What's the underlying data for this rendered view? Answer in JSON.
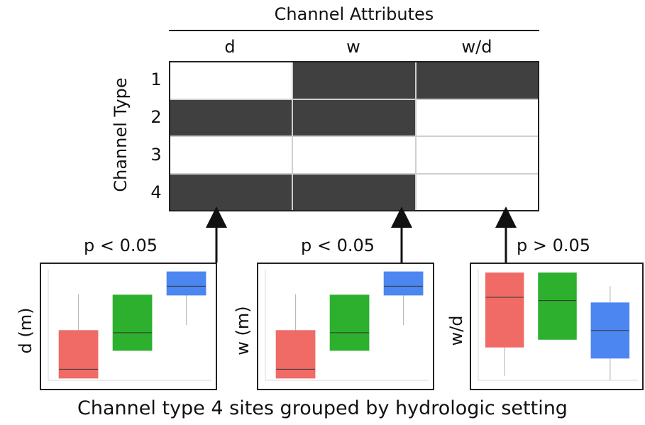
{
  "header": {
    "title": "Channel Attributes"
  },
  "matrix": {
    "columns": [
      "d",
      "w",
      "w/d"
    ],
    "row_axis_label": "Channel Type",
    "rows": [
      {
        "label": "1",
        "filled": [
          false,
          true,
          true
        ]
      },
      {
        "label": "2",
        "filled": [
          true,
          true,
          false
        ]
      },
      {
        "label": "3",
        "filled": [
          false,
          false,
          false
        ]
      },
      {
        "label": "4",
        "filled": [
          true,
          true,
          false
        ]
      }
    ],
    "fill_color": "#404040",
    "empty_color": "#ffffff"
  },
  "panels": [
    {
      "p_value": "p < 0.05",
      "ylabel": "d (m)",
      "boxes": [
        {
          "color": "#f06b66",
          "median": 0.1,
          "q1": 0.02,
          "q3": 0.45,
          "whisker_low": 0.02,
          "whisker_high": 0.78
        },
        {
          "color": "#2db02d",
          "median": 0.43,
          "q1": 0.27,
          "q3": 0.77,
          "whisker_low": 0.27,
          "whisker_high": 0.77
        },
        {
          "color": "#4c86f0",
          "median": 0.85,
          "q1": 0.77,
          "q3": 0.98,
          "whisker_low": 0.5,
          "whisker_high": 0.98
        }
      ]
    },
    {
      "p_value": "p < 0.05",
      "ylabel": "w (m)",
      "boxes": [
        {
          "color": "#f06b66",
          "median": 0.1,
          "q1": 0.02,
          "q3": 0.45,
          "whisker_low": 0.02,
          "whisker_high": 0.78
        },
        {
          "color": "#2db02d",
          "median": 0.43,
          "q1": 0.27,
          "q3": 0.77,
          "whisker_low": 0.27,
          "whisker_high": 0.77
        },
        {
          "color": "#4c86f0",
          "median": 0.85,
          "q1": 0.77,
          "q3": 0.98,
          "whisker_low": 0.5,
          "whisker_high": 0.98
        }
      ]
    },
    {
      "p_value": "p > 0.05",
      "ylabel": "w/d",
      "boxes": [
        {
          "color": "#f06b66",
          "median": 0.75,
          "q1": 0.3,
          "q3": 0.97,
          "whisker_low": 0.04,
          "whisker_high": 0.97
        },
        {
          "color": "#2db02d",
          "median": 0.72,
          "q1": 0.37,
          "q3": 0.97,
          "whisker_low": 0.37,
          "whisker_high": 0.97
        },
        {
          "color": "#4c86f0",
          "median": 0.45,
          "q1": 0.2,
          "q3": 0.7,
          "whisker_low": 0.0,
          "whisker_high": 0.85
        }
      ]
    }
  ],
  "caption": "Channel type 4 sites grouped by hydrologic setting"
}
